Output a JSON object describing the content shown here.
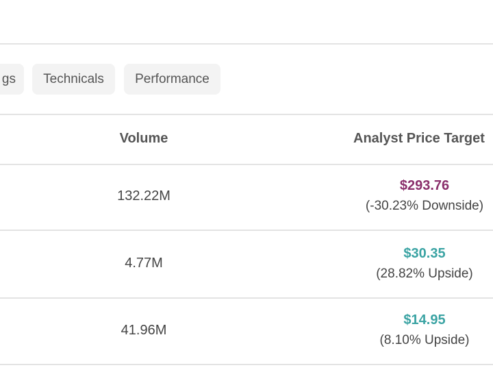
{
  "tabs": [
    {
      "label": "gs"
    },
    {
      "label": "Technicals"
    },
    {
      "label": "Performance"
    }
  ],
  "table": {
    "headers": {
      "volume": "Volume",
      "analyst_price_target": "Analyst Price Target"
    },
    "rows": [
      {
        "volume": "132.22M",
        "target_price": "$293.76",
        "target_change": "(-30.23% Downside)",
        "direction": "downside"
      },
      {
        "volume": "4.77M",
        "target_price": "$30.35",
        "target_change": "(28.82% Upside)",
        "direction": "upside"
      },
      {
        "volume": "41.96M",
        "target_price": "$14.95",
        "target_change": "(8.10% Upside)",
        "direction": "upside"
      }
    ]
  },
  "colors": {
    "downside": "#8a2f6b",
    "upside": "#3aa3a3",
    "divider": "#e3e3e3",
    "tab_background": "#f3f3f3"
  }
}
